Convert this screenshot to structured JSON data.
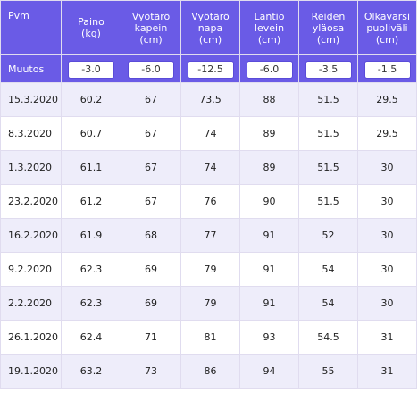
{
  "header": {
    "date": "Pvm",
    "weight": "Paino\n(kg)",
    "waist_narrow": "Vyötärö\nkapein\n(cm)",
    "waist_navel": "Vyötärö\nnapa\n(cm)",
    "hip": "Lantio\nlevein\n(cm)",
    "thigh": "Reiden\nyläosa\n(cm)",
    "upper_arm": "Olkavarsi\npuoliväli\n(cm)"
  },
  "change": {
    "label": "Muutos",
    "values": [
      "-3.0",
      "-6.0",
      "-12.5",
      "-6.0",
      "-3.5",
      "-1.5"
    ]
  },
  "rows": [
    {
      "date": "15.3.2020",
      "weight": "60.2",
      "waist_narrow": "67",
      "waist_navel": "73.5",
      "hip": "88",
      "thigh": "51.5",
      "upper_arm": "29.5"
    },
    {
      "date": "8.3.2020",
      "weight": "60.7",
      "waist_narrow": "67",
      "waist_navel": "74",
      "hip": "89",
      "thigh": "51.5",
      "upper_arm": "29.5"
    },
    {
      "date": "1.3.2020",
      "weight": "61.1",
      "waist_narrow": "67",
      "waist_navel": "74",
      "hip": "89",
      "thigh": "51.5",
      "upper_arm": "30"
    },
    {
      "date": "23.2.2020",
      "weight": "61.2",
      "waist_narrow": "67",
      "waist_navel": "76",
      "hip": "90",
      "thigh": "51.5",
      "upper_arm": "30"
    },
    {
      "date": "16.2.2020",
      "weight": "61.9",
      "waist_narrow": "68",
      "waist_navel": "77",
      "hip": "91",
      "thigh": "52",
      "upper_arm": "30"
    },
    {
      "date": "9.2.2020",
      "weight": "62.3",
      "waist_narrow": "69",
      "waist_navel": "79",
      "hip": "91",
      "thigh": "54",
      "upper_arm": "30"
    },
    {
      "date": "2.2.2020",
      "weight": "62.3",
      "waist_narrow": "69",
      "waist_navel": "79",
      "hip": "91",
      "thigh": "54",
      "upper_arm": "30"
    },
    {
      "date": "26.1.2020",
      "weight": "62.4",
      "waist_narrow": "71",
      "waist_navel": "81",
      "hip": "93",
      "thigh": "54.5",
      "upper_arm": "31"
    },
    {
      "date": "19.1.2020",
      "weight": "63.2",
      "waist_narrow": "73",
      "waist_navel": "86",
      "hip": "94",
      "thigh": "55",
      "upper_arm": "31"
    }
  ],
  "colors": {
    "header_bg": "#6a5be6",
    "row_stripe": "#eeedfa",
    "row_plain": "#ffffff"
  }
}
